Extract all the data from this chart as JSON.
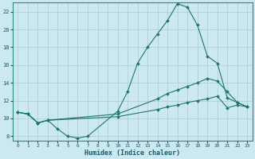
{
  "title": "",
  "xlabel": "Humidex (Indice chaleur)",
  "bg_color": "#cce8f0",
  "grid_color": "#b0cfd8",
  "line_color": "#1a7a6a",
  "xlim": [
    -0.5,
    23.5
  ],
  "ylim": [
    7.5,
    23.0
  ],
  "xticks": [
    0,
    1,
    2,
    3,
    4,
    5,
    6,
    7,
    8,
    9,
    10,
    11,
    12,
    13,
    14,
    15,
    16,
    17,
    18,
    19,
    20,
    21,
    22,
    23
  ],
  "yticks": [
    8,
    10,
    12,
    14,
    16,
    18,
    20,
    22
  ],
  "line1_x": [
    0,
    1,
    2,
    3,
    4,
    5,
    6,
    7,
    10,
    11,
    12,
    13,
    14,
    15,
    16,
    17,
    18,
    19,
    20,
    21,
    22,
    23
  ],
  "line1_y": [
    10.7,
    10.5,
    9.5,
    9.8,
    8.8,
    8.0,
    7.8,
    8.0,
    10.8,
    13.0,
    16.2,
    18.0,
    19.5,
    21.0,
    22.9,
    22.5,
    20.5,
    17.0,
    16.2,
    12.3,
    11.8,
    11.3
  ],
  "line2_x": [
    0,
    1,
    2,
    3,
    10,
    14,
    15,
    16,
    17,
    18,
    19,
    20,
    21,
    22,
    23
  ],
  "line2_y": [
    10.7,
    10.5,
    9.5,
    9.8,
    10.5,
    12.2,
    12.8,
    13.2,
    13.6,
    14.0,
    14.5,
    14.2,
    13.0,
    11.8,
    11.3
  ],
  "line3_x": [
    0,
    1,
    2,
    3,
    10,
    14,
    15,
    16,
    17,
    18,
    19,
    20,
    21,
    22,
    23
  ],
  "line3_y": [
    10.7,
    10.5,
    9.5,
    9.8,
    10.2,
    11.0,
    11.3,
    11.5,
    11.8,
    12.0,
    12.2,
    12.5,
    11.2,
    11.5,
    11.3
  ]
}
